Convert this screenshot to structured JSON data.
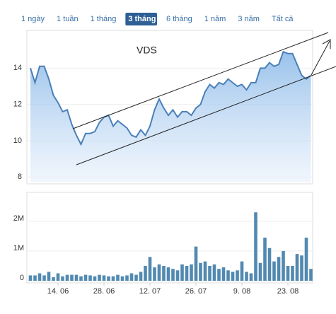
{
  "range_buttons": [
    "1 ngày",
    "1 tuần",
    "1 tháng",
    "3 tháng",
    "6 tháng",
    "1 năm",
    "3 năm",
    "Tất cả"
  ],
  "active_button": 3,
  "chart_data": [
    {
      "type": "area",
      "annotation": "VDS",
      "color": "#4a80b8",
      "values": [
        14.0,
        13.2,
        14.1,
        14.1,
        13.4,
        12.5,
        12.1,
        11.6,
        11.7,
        10.9,
        10.3,
        9.8,
        10.4,
        10.4,
        10.5,
        11.0,
        11.3,
        11.4,
        10.8,
        11.1,
        10.9,
        10.7,
        10.3,
        10.2,
        10.6,
        10.3,
        10.8,
        11.7,
        12.3,
        11.8,
        11.4,
        11.7,
        11.3,
        11.6,
        11.6,
        11.4,
        11.8,
        12.0,
        12.7,
        13.1,
        12.9,
        13.2,
        13.1,
        13.4,
        13.2,
        13.0,
        13.1,
        12.8,
        13.2,
        13.2,
        14.0,
        14.0,
        14.3,
        14.1,
        14.2,
        14.9,
        14.8,
        14.8,
        14.2,
        13.6,
        13.4,
        13.6
      ],
      "ylim": [
        7.7,
        16
      ],
      "yticks": [
        8,
        10,
        12,
        14
      ],
      "grid": true
    },
    {
      "type": "bar",
      "color": "#5189b0",
      "categories": [
        null,
        null,
        null,
        null,
        null,
        null,
        "14. 06",
        null,
        null,
        null,
        null,
        null,
        null,
        null,
        null,
        null,
        "28. 06",
        null,
        null,
        null,
        null,
        null,
        null,
        null,
        null,
        null,
        "12. 07",
        null,
        null,
        null,
        null,
        null,
        null,
        null,
        null,
        null,
        "26. 07",
        null,
        null,
        null,
        null,
        null,
        null,
        null,
        null,
        null,
        "9. 08",
        null,
        null,
        null,
        null,
        null,
        null,
        null,
        null,
        null,
        "23. 08",
        null,
        null,
        null,
        null,
        null
      ],
      "values": [
        180000,
        180000,
        250000,
        180000,
        300000,
        120000,
        250000,
        150000,
        200000,
        200000,
        200000,
        150000,
        200000,
        180000,
        150000,
        200000,
        180000,
        150000,
        150000,
        200000,
        150000,
        180000,
        250000,
        200000,
        300000,
        500000,
        800000,
        450000,
        550000,
        500000,
        450000,
        400000,
        350000,
        550000,
        500000,
        550000,
        1150000,
        600000,
        650000,
        500000,
        550000,
        400000,
        450000,
        350000,
        300000,
        350000,
        650000,
        300000,
        250000,
        2300000,
        600000,
        1450000,
        1100000,
        650000,
        800000,
        1000000,
        500000,
        500000,
        900000,
        850000,
        1450000,
        400000
      ],
      "ylim": [
        0,
        2900000
      ],
      "yticks": [
        {
          "value": 0,
          "label": "0"
        },
        {
          "value": 1000000,
          "label": "1M"
        },
        {
          "value": 2000000,
          "label": "2M"
        }
      ],
      "grid": true
    }
  ]
}
